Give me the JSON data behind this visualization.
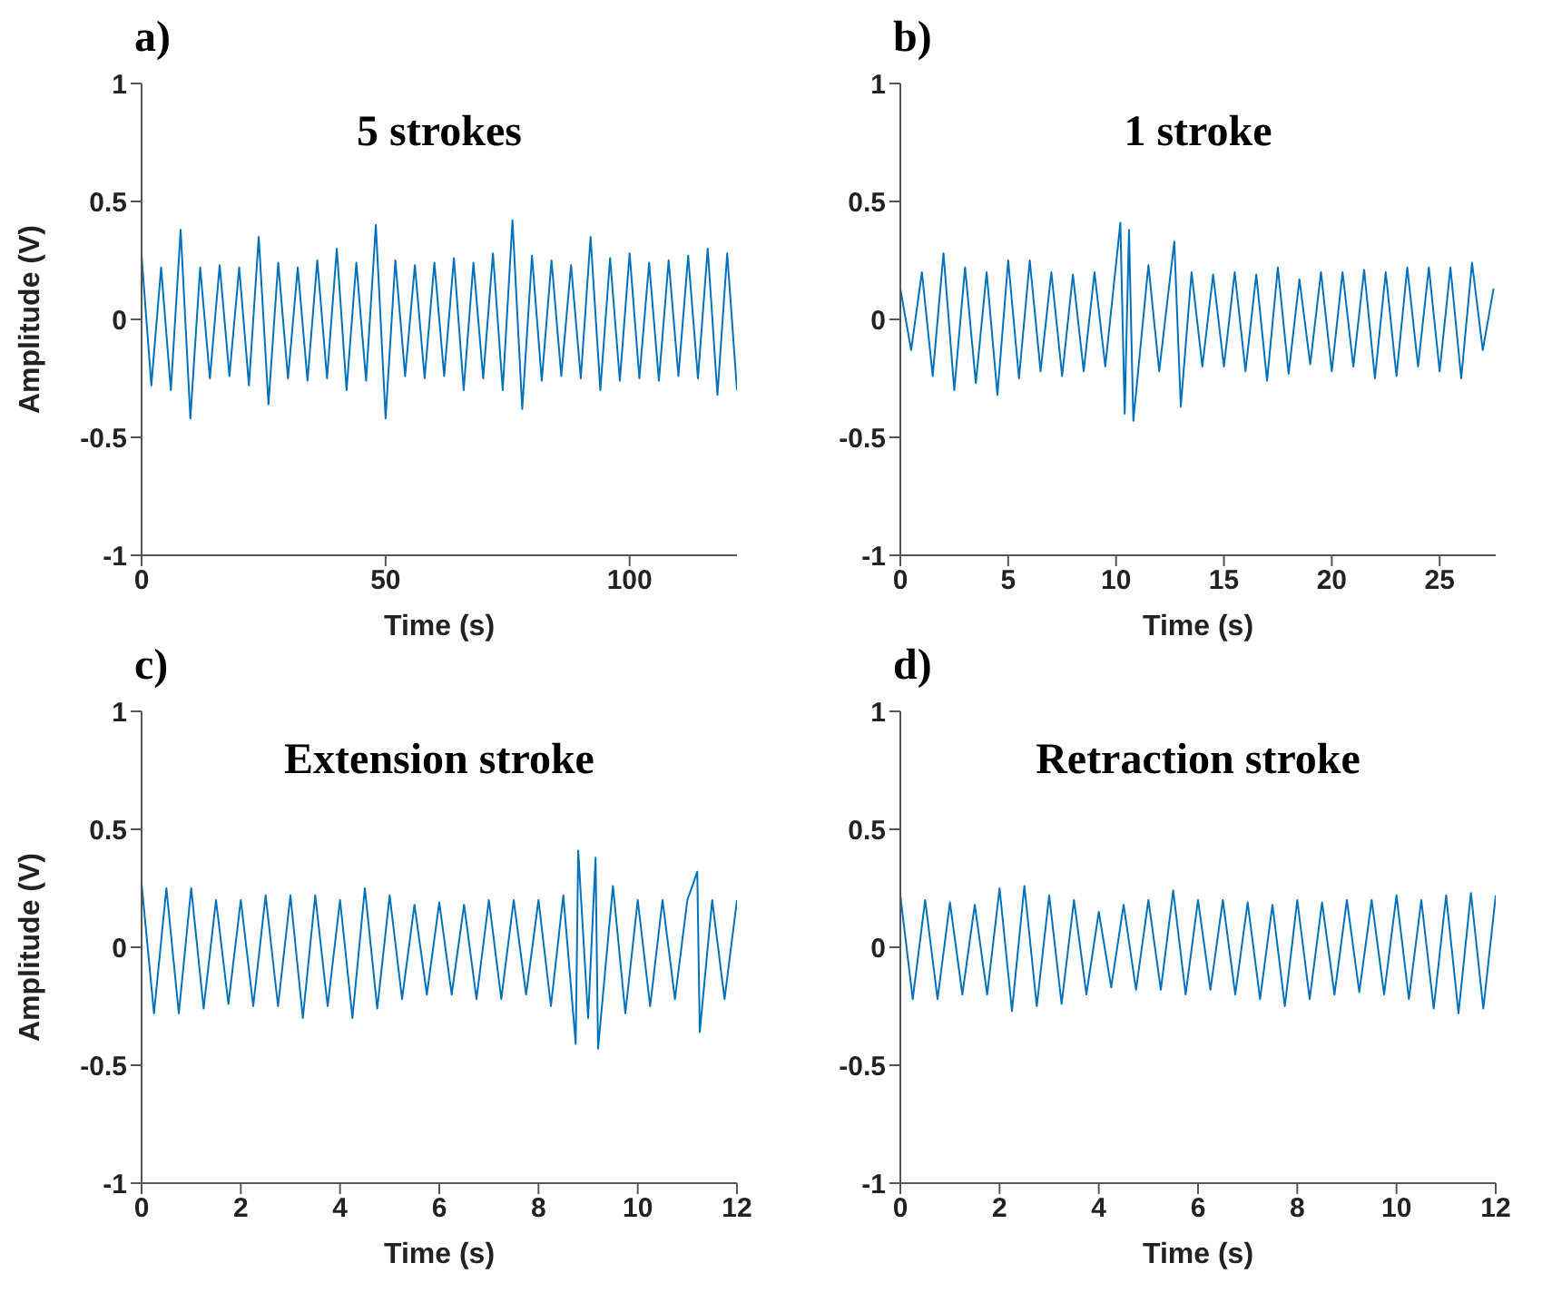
{
  "chart_data": [
    {
      "type": "line",
      "title": "a)",
      "annotations": [
        "5 strokes"
      ],
      "xlabel": "Time (s)",
      "ylabel": "Amplitude (V)",
      "color": "#0072bd",
      "xlim": [
        0,
        122
      ],
      "xticks": [
        0,
        50,
        100
      ],
      "ylim": [
        -1,
        1
      ],
      "yticks": [
        -1,
        -0.5,
        0,
        0.5,
        1
      ],
      "grid": false,
      "legend": false,
      "x": [
        0,
        2,
        4,
        6,
        8,
        10,
        12,
        14,
        16,
        18,
        20,
        22,
        24,
        26,
        28,
        30,
        32,
        34,
        36,
        38,
        40,
        42,
        44,
        46,
        48,
        50,
        52,
        54,
        56,
        58,
        60,
        62,
        64,
        66,
        68,
        70,
        72,
        74,
        76,
        78,
        80,
        82,
        84,
        86,
        88,
        90,
        92,
        94,
        96,
        98,
        100,
        102,
        104,
        106,
        108,
        110,
        112,
        114,
        116,
        118,
        120,
        122
      ],
      "values": [
        0.27,
        -0.28,
        0.22,
        -0.3,
        0.38,
        -0.42,
        0.22,
        -0.25,
        0.23,
        -0.24,
        0.22,
        -0.28,
        0.35,
        -0.36,
        0.24,
        -0.25,
        0.22,
        -0.26,
        0.25,
        -0.25,
        0.3,
        -0.3,
        0.24,
        -0.26,
        0.4,
        -0.42,
        0.25,
        -0.24,
        0.23,
        -0.25,
        0.24,
        -0.24,
        0.26,
        -0.3,
        0.24,
        -0.25,
        0.28,
        -0.3,
        0.42,
        -0.38,
        0.27,
        -0.26,
        0.25,
        -0.24,
        0.23,
        -0.25,
        0.35,
        -0.3,
        0.26,
        -0.26,
        0.28,
        -0.25,
        0.24,
        -0.26,
        0.25,
        -0.24,
        0.27,
        -0.25,
        0.3,
        -0.32,
        0.28,
        -0.3
      ]
    },
    {
      "type": "line",
      "title": "b)",
      "annotations": [
        "1 stroke"
      ],
      "xlabel": "Time (s)",
      "color": "#0072bd",
      "xlim": [
        0,
        27.6
      ],
      "xticks": [
        0,
        5,
        10,
        15,
        20,
        25
      ],
      "ylim": [
        -1,
        1
      ],
      "yticks": [
        -1,
        -0.5,
        0,
        0.5,
        1
      ],
      "grid": false,
      "legend": false,
      "x": [
        0,
        0.5,
        1,
        1.5,
        2,
        2.5,
        3,
        3.5,
        4,
        4.5,
        5,
        5.5,
        6,
        6.5,
        7,
        7.5,
        8,
        8.5,
        9,
        9.5,
        10.2,
        10.4,
        10.6,
        10.8,
        11.5,
        12,
        12.7,
        13,
        13.5,
        14,
        14.5,
        15,
        15.5,
        16,
        16.5,
        17,
        17.5,
        18,
        18.5,
        19,
        19.5,
        20,
        20.5,
        21,
        21.5,
        22,
        22.5,
        23,
        23.5,
        24,
        24.5,
        25,
        25.5,
        26,
        26.5,
        27,
        27.5
      ],
      "values": [
        0.13,
        -0.13,
        0.2,
        -0.24,
        0.28,
        -0.3,
        0.22,
        -0.27,
        0.2,
        -0.32,
        0.25,
        -0.25,
        0.25,
        -0.22,
        0.2,
        -0.24,
        0.19,
        -0.22,
        0.2,
        -0.2,
        0.41,
        -0.4,
        0.38,
        -0.43,
        0.23,
        -0.22,
        0.33,
        -0.37,
        0.2,
        -0.2,
        0.19,
        -0.2,
        0.2,
        -0.22,
        0.19,
        -0.26,
        0.22,
        -0.23,
        0.17,
        -0.19,
        0.2,
        -0.22,
        0.2,
        -0.2,
        0.21,
        -0.25,
        0.2,
        -0.24,
        0.22,
        -0.2,
        0.22,
        -0.22,
        0.22,
        -0.25,
        0.24,
        -0.13,
        0.13
      ]
    },
    {
      "type": "line",
      "title": "c)",
      "annotations": [
        "Extension stroke"
      ],
      "xlabel": "Time (s)",
      "ylabel": "Amplitude (V)",
      "color": "#0072bd",
      "xlim": [
        0,
        12
      ],
      "xticks": [
        0,
        2,
        4,
        6,
        8,
        10,
        12
      ],
      "ylim": [
        -1,
        1
      ],
      "yticks": [
        -1,
        -0.5,
        0,
        0.5,
        1
      ],
      "grid": false,
      "legend": false,
      "x": [
        0,
        0.25,
        0.5,
        0.75,
        1,
        1.25,
        1.5,
        1.75,
        2,
        2.25,
        2.5,
        2.75,
        3,
        3.25,
        3.5,
        3.75,
        4,
        4.25,
        4.5,
        4.75,
        5,
        5.25,
        5.5,
        5.75,
        6,
        6.25,
        6.5,
        6.75,
        7,
        7.25,
        7.5,
        7.75,
        8,
        8.25,
        8.5,
        8.75,
        8.8,
        9,
        9.15,
        9.2,
        9.5,
        9.75,
        10,
        10.25,
        10.5,
        10.75,
        11,
        11.2,
        11.25,
        11.5,
        11.75,
        12
      ],
      "values": [
        0.27,
        -0.28,
        0.25,
        -0.28,
        0.25,
        -0.26,
        0.2,
        -0.24,
        0.2,
        -0.25,
        0.22,
        -0.25,
        0.22,
        -0.3,
        0.22,
        -0.25,
        0.2,
        -0.3,
        0.25,
        -0.26,
        0.22,
        -0.22,
        0.18,
        -0.2,
        0.19,
        -0.2,
        0.18,
        -0.22,
        0.2,
        -0.22,
        0.2,
        -0.2,
        0.2,
        -0.25,
        0.22,
        -0.41,
        0.41,
        -0.3,
        0.38,
        -0.43,
        0.26,
        -0.28,
        0.2,
        -0.25,
        0.2,
        -0.22,
        0.2,
        0.32,
        -0.36,
        0.2,
        -0.22,
        0.2
      ]
    },
    {
      "type": "line",
      "title": "d)",
      "annotations": [
        "Retraction stroke"
      ],
      "xlabel": "Time (s)",
      "color": "#0072bd",
      "xlim": [
        0,
        12
      ],
      "xticks": [
        0,
        2,
        4,
        6,
        8,
        10,
        12
      ],
      "ylim": [
        -1,
        1
      ],
      "yticks": [
        -1,
        -0.5,
        0,
        0.5,
        1
      ],
      "grid": false,
      "legend": false,
      "x": [
        0,
        0.25,
        0.5,
        0.75,
        1,
        1.25,
        1.5,
        1.75,
        2,
        2.25,
        2.5,
        2.75,
        3,
        3.25,
        3.5,
        3.75,
        4,
        4.25,
        4.5,
        4.75,
        5,
        5.25,
        5.5,
        5.75,
        6,
        6.25,
        6.5,
        6.75,
        7,
        7.25,
        7.5,
        7.75,
        8,
        8.25,
        8.5,
        8.75,
        9,
        9.25,
        9.5,
        9.75,
        10,
        10.25,
        10.5,
        10.75,
        11,
        11.25,
        11.5,
        11.75,
        12
      ],
      "values": [
        0.22,
        -0.22,
        0.2,
        -0.22,
        0.19,
        -0.2,
        0.18,
        -0.2,
        0.25,
        -0.27,
        0.26,
        -0.25,
        0.22,
        -0.24,
        0.2,
        -0.2,
        0.15,
        -0.17,
        0.18,
        -0.18,
        0.2,
        -0.18,
        0.24,
        -0.2,
        0.2,
        -0.18,
        0.2,
        -0.2,
        0.19,
        -0.22,
        0.18,
        -0.25,
        0.2,
        -0.22,
        0.19,
        -0.2,
        0.2,
        -0.19,
        0.2,
        -0.2,
        0.22,
        -0.22,
        0.2,
        -0.26,
        0.22,
        -0.28,
        0.23,
        -0.26,
        0.22
      ]
    }
  ]
}
